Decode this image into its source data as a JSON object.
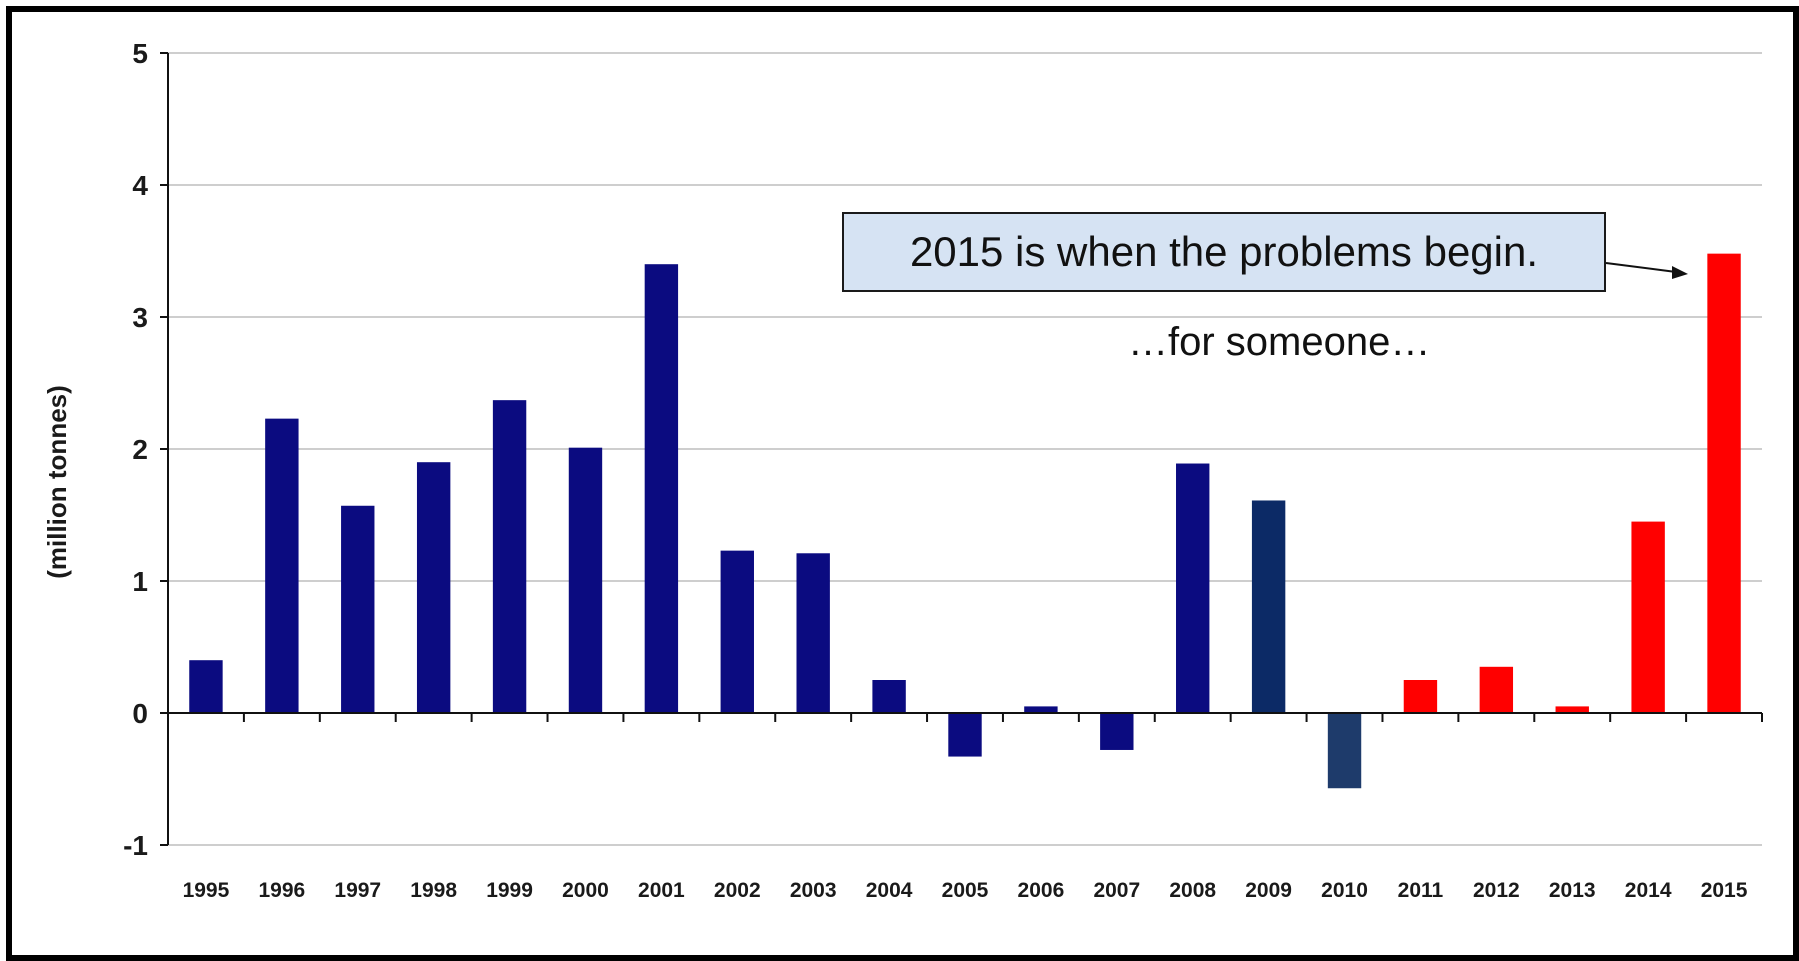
{
  "chart_data": {
    "type": "bar",
    "title": "",
    "xlabel": "",
    "ylabel": "(million tonnes)",
    "ylim": [
      -1,
      5
    ],
    "yticks": [
      "5",
      "4",
      "3",
      "2",
      "1",
      "0",
      "-1"
    ],
    "grid": true,
    "categories": [
      "1995",
      "1996",
      "1997",
      "1998",
      "1999",
      "2000",
      "2001",
      "2002",
      "2003",
      "2004",
      "2005",
      "2006",
      "2007",
      "2008",
      "2009",
      "2010",
      "2011",
      "2012",
      "2013",
      "2014",
      "2015"
    ],
    "values": [
      0.4,
      2.23,
      1.57,
      1.9,
      2.37,
      2.01,
      3.4,
      1.23,
      1.21,
      0.25,
      -0.33,
      0.05,
      -0.28,
      1.89,
      1.61,
      -0.57,
      0.25,
      0.35,
      0.05,
      1.45,
      3.48
    ],
    "bar_colors": [
      "#0b0b80",
      "#0b0b80",
      "#0b0b80",
      "#0b0b80",
      "#0b0b80",
      "#0b0b80",
      "#0b0b80",
      "#0b0b80",
      "#0b0b80",
      "#0b0b80",
      "#0b0b80",
      "#0b0b80",
      "#0b0b80",
      "#0b0b80",
      "#0c2a66",
      "#1e3b6b",
      "#ff0000",
      "#ff0000",
      "#ff0000",
      "#ff0000",
      "#ff0000"
    ],
    "annotations": {
      "callout": "2015 is when the problems begin.",
      "note": "…for someone…"
    }
  }
}
